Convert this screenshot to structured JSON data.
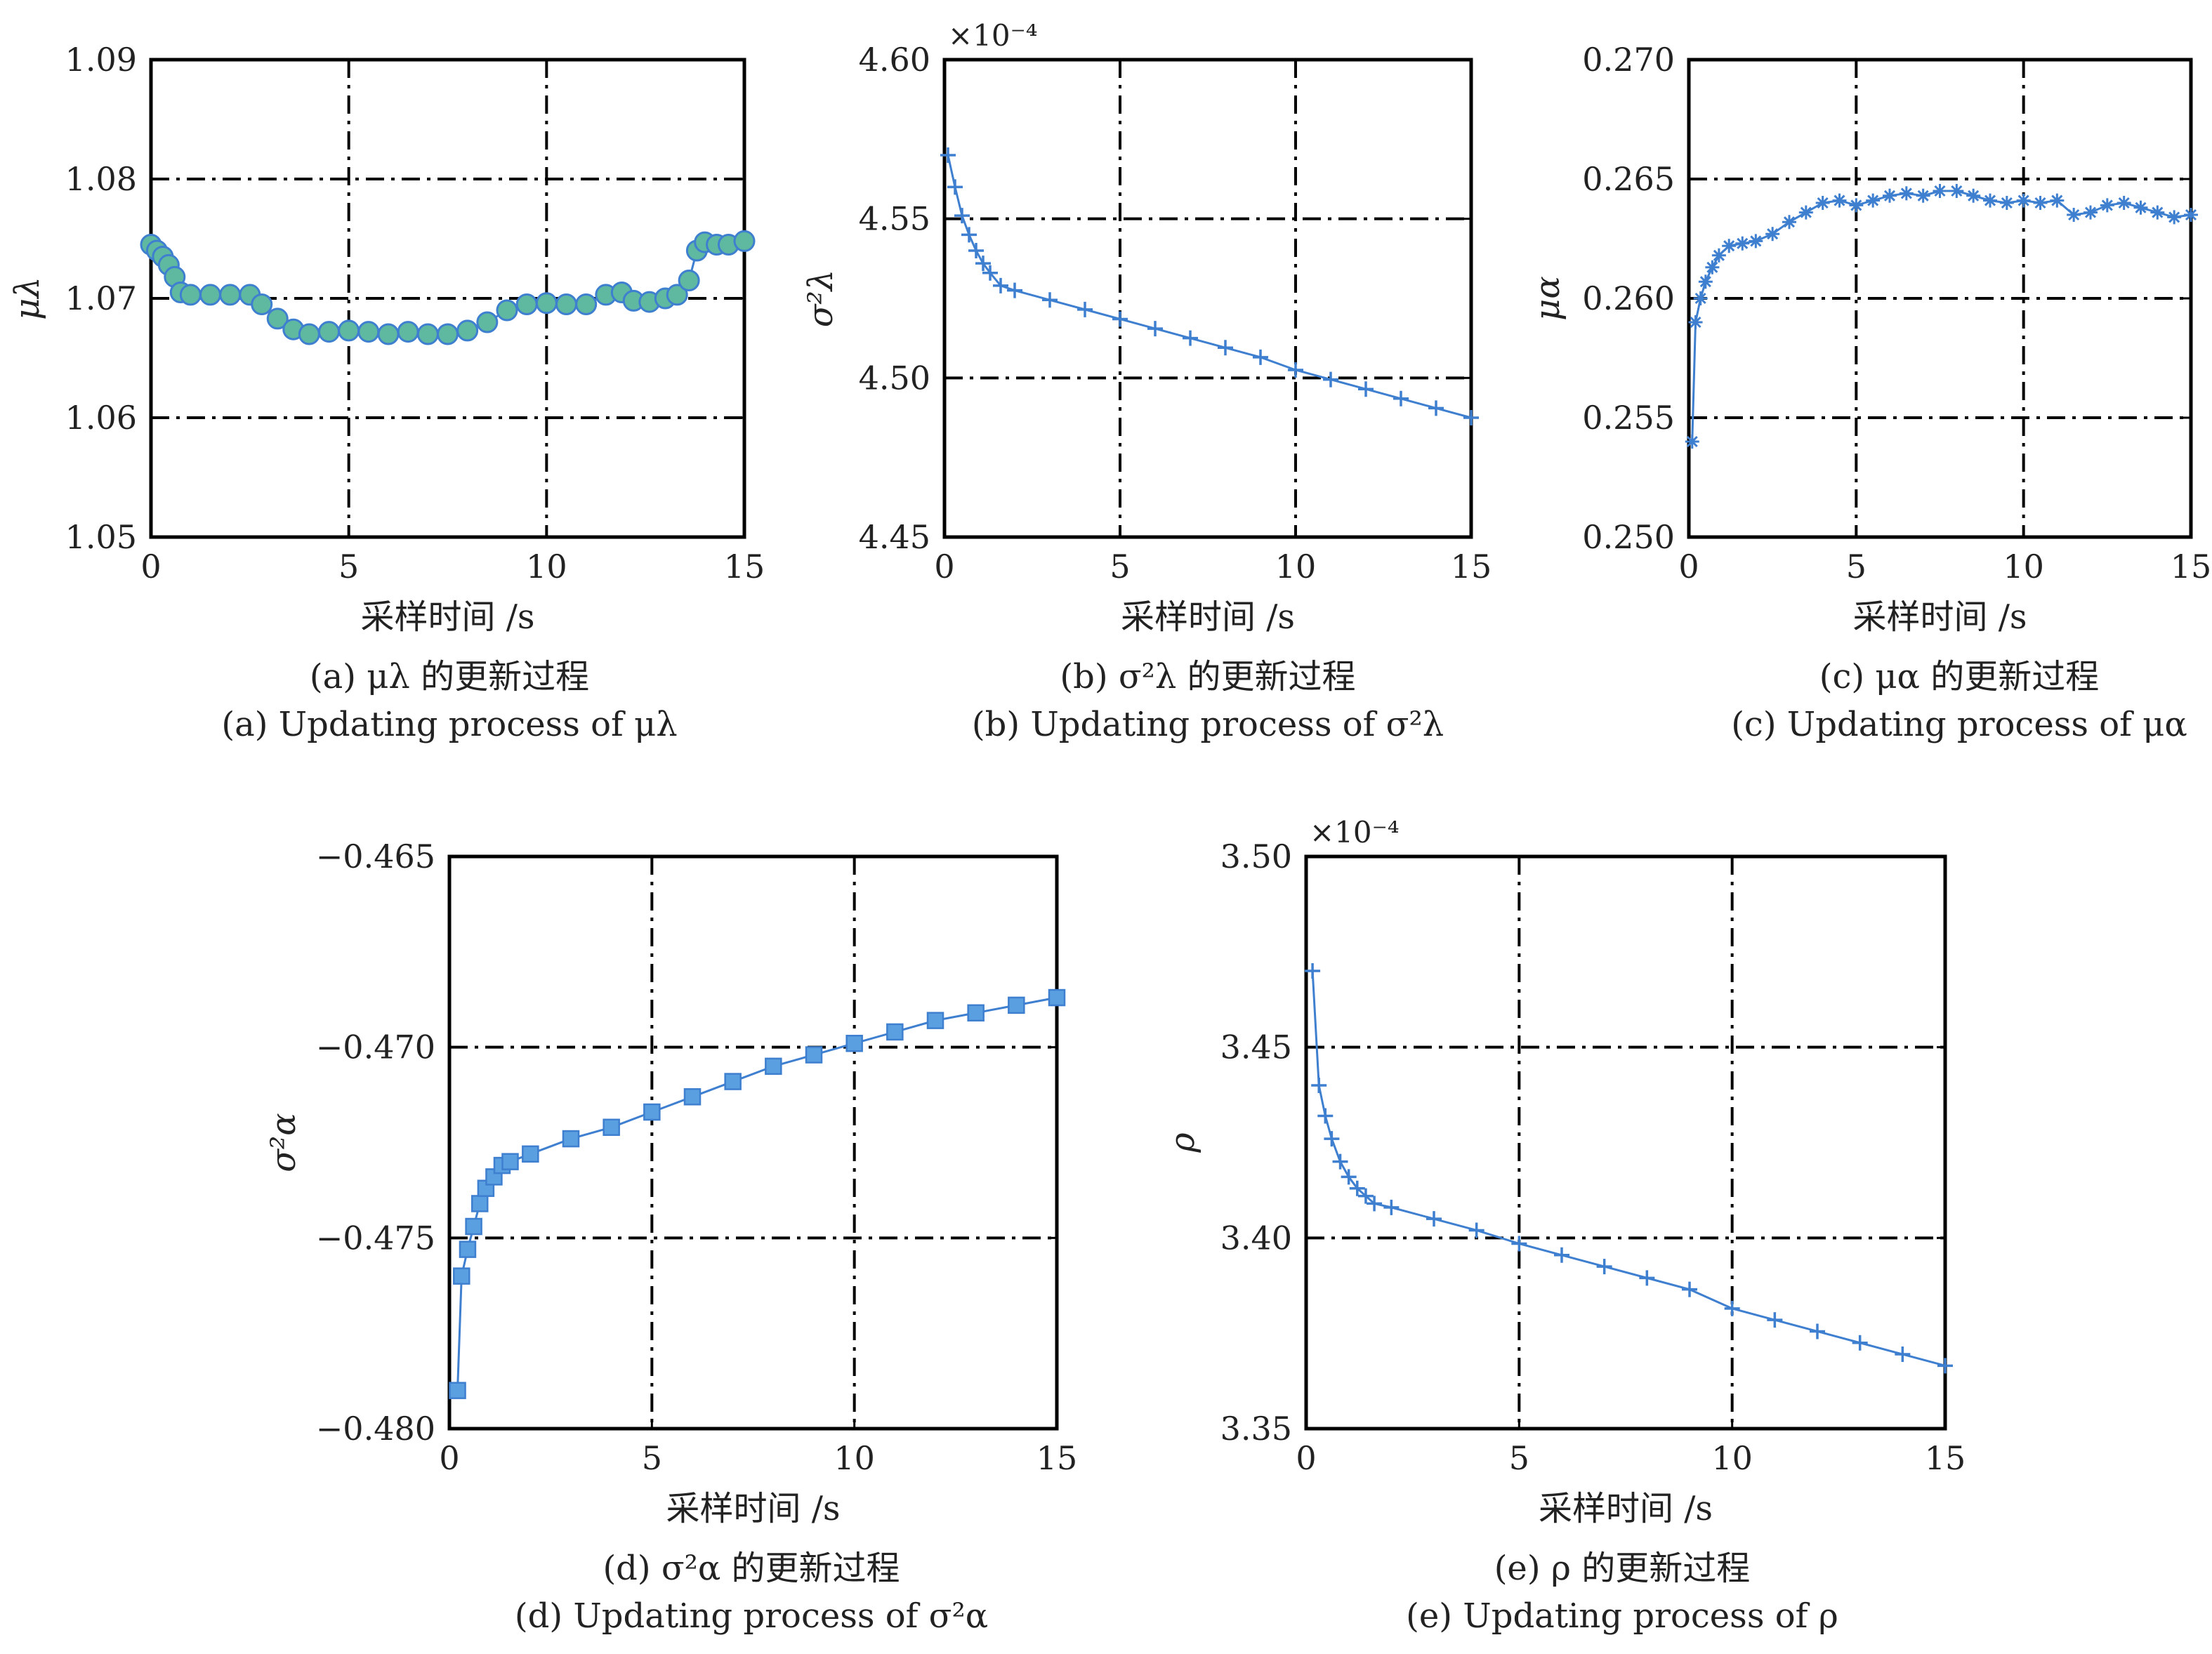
{
  "chart_data": [
    {
      "id": "a",
      "type": "scatter",
      "marker": "circle",
      "color": "#3f7fcf",
      "marker_fill": "#5fb8a0",
      "xlabel": "采样时间 /s",
      "ylabel": "μλ",
      "xlim": [
        0,
        15
      ],
      "ylim": [
        1.05,
        1.09
      ],
      "xticks": [
        "0",
        "5",
        "10",
        "15"
      ],
      "yticks": [
        "1.05",
        "1.06",
        "1.07",
        "1.08",
        "1.09"
      ],
      "xtick_values": [
        0,
        5,
        10,
        15
      ],
      "ytick_values": [
        1.05,
        1.06,
        1.07,
        1.08,
        1.09
      ],
      "multiplier": "",
      "caption_cn": "(a) μλ 的更新过程",
      "caption_en": "(a) Updating process of μλ",
      "x": [
        0,
        0.15,
        0.3,
        0.45,
        0.6,
        0.75,
        1.0,
        1.5,
        2.0,
        2.5,
        2.8,
        3.2,
        3.6,
        4.0,
        4.5,
        5.0,
        5.5,
        6.0,
        6.5,
        7.0,
        7.5,
        8.0,
        8.5,
        9.0,
        9.5,
        10.0,
        10.5,
        11.0,
        11.5,
        11.9,
        12.2,
        12.6,
        13.0,
        13.3,
        13.6,
        13.8,
        14.0,
        14.3,
        14.6,
        15.0
      ],
      "y": [
        1.0745,
        1.074,
        1.0735,
        1.0728,
        1.0718,
        1.0705,
        1.0703,
        1.0703,
        1.0703,
        1.0703,
        1.0695,
        1.0683,
        1.0674,
        1.067,
        1.0672,
        1.0673,
        1.0672,
        1.067,
        1.0672,
        1.067,
        1.067,
        1.0673,
        1.068,
        1.069,
        1.0695,
        1.0696,
        1.0695,
        1.0695,
        1.0703,
        1.0705,
        1.0698,
        1.0697,
        1.07,
        1.0703,
        1.0715,
        1.074,
        1.0747,
        1.0745,
        1.0745,
        1.0748
      ]
    },
    {
      "id": "b",
      "type": "line",
      "marker": "plus",
      "color": "#3f7fcf",
      "xlabel": "采样时间 /s",
      "ylabel": "σ²λ",
      "xlim": [
        0,
        15
      ],
      "ylim": [
        4.45,
        4.6
      ],
      "xticks": [
        "0",
        "5",
        "10",
        "15"
      ],
      "yticks": [
        "4.45",
        "4.50",
        "4.55",
        "4.60"
      ],
      "xtick_values": [
        0,
        5,
        10,
        15
      ],
      "ytick_values": [
        4.45,
        4.5,
        4.55,
        4.6
      ],
      "multiplier": "×10⁻⁴",
      "caption_cn": "(b) σ²λ 的更新过程",
      "caption_en": "(b) Updating process of σ²λ",
      "x": [
        0.1,
        0.3,
        0.5,
        0.7,
        0.9,
        1.1,
        1.3,
        1.6,
        2,
        3,
        4,
        5,
        6,
        7,
        8,
        9,
        10,
        11,
        12,
        13,
        14,
        15
      ],
      "y": [
        4.57,
        4.56,
        4.551,
        4.545,
        4.54,
        4.536,
        4.533,
        4.529,
        4.5275,
        4.5245,
        4.5215,
        4.5185,
        4.5155,
        4.5125,
        4.5095,
        4.5065,
        4.5025,
        4.4995,
        4.4965,
        4.4935,
        4.4905,
        4.4875
      ]
    },
    {
      "id": "c",
      "type": "line",
      "marker": "asterisk",
      "color": "#3f7fcf",
      "xlabel": "采样时间 /s",
      "ylabel": "μα",
      "xlim": [
        0,
        15
      ],
      "ylim": [
        0.25,
        0.27
      ],
      "xticks": [
        "0",
        "5",
        "10",
        "15"
      ],
      "yticks": [
        "0.250",
        "0.255",
        "0.260",
        "0.265",
        "0.270"
      ],
      "xtick_values": [
        0,
        5,
        10,
        15
      ],
      "ytick_values": [
        0.25,
        0.255,
        0.26,
        0.265,
        0.27
      ],
      "multiplier": "",
      "caption_cn": "(c) μα 的更新过程",
      "caption_en": "(c) Updating process of μα",
      "x": [
        0.1,
        0.2,
        0.35,
        0.5,
        0.7,
        0.9,
        1.2,
        1.6,
        2,
        2.5,
        3,
        3.5,
        4,
        4.5,
        5,
        5.5,
        6,
        6.5,
        7,
        7.5,
        8,
        8.5,
        9,
        9.5,
        10,
        10.5,
        11,
        11.5,
        12,
        12.5,
        13,
        13.5,
        14,
        14.5,
        15
      ],
      "y": [
        0.254,
        0.259,
        0.26,
        0.2607,
        0.2613,
        0.2618,
        0.2622,
        0.2623,
        0.2624,
        0.2627,
        0.2632,
        0.2636,
        0.264,
        0.2641,
        0.2639,
        0.2641,
        0.2643,
        0.2644,
        0.2643,
        0.2645,
        0.2645,
        0.2643,
        0.2641,
        0.264,
        0.2641,
        0.264,
        0.2641,
        0.2635,
        0.2636,
        0.2639,
        0.264,
        0.2638,
        0.2636,
        0.2634,
        0.2635
      ]
    },
    {
      "id": "d",
      "type": "line",
      "marker": "square",
      "color": "#3f7fcf",
      "marker_fill": "#5a9fe0",
      "xlabel": "采样时间 /s",
      "ylabel": "σ²α",
      "xlim": [
        0,
        15
      ],
      "ylim": [
        -0.48,
        -0.465
      ],
      "xticks": [
        "0",
        "5",
        "10",
        "15"
      ],
      "yticks": [
        "−0.480",
        "−0.475",
        "−0.470",
        "−0.465"
      ],
      "xtick_values": [
        0,
        5,
        10,
        15
      ],
      "ytick_values": [
        -0.48,
        -0.475,
        -0.47,
        -0.465
      ],
      "multiplier": "",
      "caption_cn": "(d) σ²α 的更新过程",
      "caption_en": "(d) Updating process of σ²α",
      "x": [
        0.2,
        0.3,
        0.45,
        0.6,
        0.75,
        0.9,
        1.1,
        1.3,
        1.5,
        2,
        3,
        4,
        5,
        6,
        7,
        8,
        9,
        10,
        11,
        12,
        13,
        14,
        15
      ],
      "y": [
        -0.479,
        -0.476,
        -0.4753,
        -0.4747,
        -0.4741,
        -0.4737,
        -0.4734,
        -0.4731,
        -0.473,
        -0.4728,
        -0.4724,
        -0.4721,
        -0.4717,
        -0.4713,
        -0.4709,
        -0.4705,
        -0.4702,
        -0.4699,
        -0.4696,
        -0.4693,
        -0.4691,
        -0.4689,
        -0.4687
      ]
    },
    {
      "id": "e",
      "type": "line",
      "marker": "plus",
      "color": "#3f7fcf",
      "xlabel": "采样时间 /s",
      "ylabel": "ρ",
      "xlim": [
        0,
        15
      ],
      "ylim": [
        3.35,
        3.5
      ],
      "xticks": [
        "0",
        "5",
        "10",
        "15"
      ],
      "yticks": [
        "3.35",
        "3.40",
        "3.45",
        "3.50"
      ],
      "xtick_values": [
        0,
        5,
        10,
        15
      ],
      "ytick_values": [
        3.35,
        3.4,
        3.45,
        3.5
      ],
      "multiplier": "×10⁻⁴",
      "caption_cn": "(e) ρ 的更新过程",
      "caption_en": "(e) Updating process of ρ",
      "x": [
        0.15,
        0.3,
        0.45,
        0.6,
        0.8,
        1.0,
        1.2,
        1.4,
        1.6,
        2,
        3,
        4,
        5,
        6,
        7,
        8,
        9,
        10,
        11,
        12,
        13,
        14,
        15
      ],
      "y": [
        3.47,
        3.44,
        3.432,
        3.426,
        3.42,
        3.416,
        3.413,
        3.411,
        3.409,
        3.408,
        3.405,
        3.402,
        3.3985,
        3.3955,
        3.3925,
        3.3895,
        3.3865,
        3.3815,
        3.3785,
        3.3755,
        3.3725,
        3.3695,
        3.3665
      ]
    }
  ]
}
